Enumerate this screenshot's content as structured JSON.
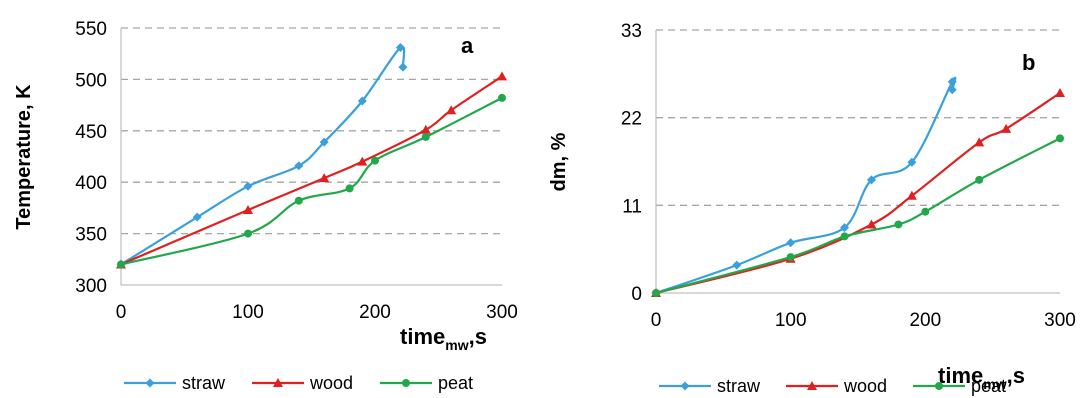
{
  "chart_data": [
    {
      "type": "line",
      "panel_label": "a",
      "xlabel": "time",
      "xlabel_subscript": "mw",
      "xlabel_suffix": ",s",
      "ylabel": "Temperature, K",
      "xlim": [
        0,
        300
      ],
      "ylim": [
        300,
        550
      ],
      "xticks": [
        "0",
        "100",
        "200",
        "300"
      ],
      "yticks": [
        "300",
        "350",
        "400",
        "450",
        "500",
        "550"
      ],
      "grid": "horizontal dashed",
      "legend_position": "bottom",
      "series": [
        {
          "name": "straw",
          "color": "#3aa0dc",
          "marker": "diamond",
          "x": [
            0,
            60,
            100,
            140,
            160,
            190,
            220,
            222
          ],
          "y": [
            320,
            366,
            396,
            416,
            439,
            479,
            531,
            512
          ]
        },
        {
          "name": "wood",
          "color": "#e02020",
          "marker": "triangle",
          "x": [
            0,
            100,
            160,
            190,
            240,
            260,
            300
          ],
          "y": [
            320,
            373,
            404,
            420,
            451,
            470,
            503
          ]
        },
        {
          "name": "peat",
          "color": "#22a84a",
          "marker": "circle",
          "x": [
            0,
            100,
            140,
            180,
            200,
            240,
            300
          ],
          "y": [
            320,
            350,
            382,
            394,
            421,
            444,
            482
          ]
        }
      ]
    },
    {
      "type": "line",
      "panel_label": "b",
      "xlabel": "time",
      "xlabel_subscript": "mw",
      "xlabel_suffix": ",s",
      "ylabel": "dm, %",
      "xlim": [
        0,
        300
      ],
      "ylim": [
        0,
        33
      ],
      "xticks": [
        "0",
        "100",
        "200",
        "300"
      ],
      "yticks": [
        "0",
        "11",
        "22",
        "33"
      ],
      "grid": "horizontal dashed",
      "legend_position": "bottom",
      "series": [
        {
          "name": "straw",
          "color": "#3aa0dc",
          "marker": "diamond",
          "x": [
            0,
            60,
            100,
            140,
            160,
            190,
            220,
            220
          ],
          "y": [
            0,
            3.5,
            6.3,
            8.2,
            14.2,
            16.4,
            26.5,
            25.5
          ]
        },
        {
          "name": "wood",
          "color": "#e02020",
          "marker": "triangle",
          "x": [
            0,
            100,
            160,
            190,
            240,
            260,
            300
          ],
          "y": [
            0,
            4.3,
            8.6,
            12.2,
            18.9,
            20.6,
            25.1
          ]
        },
        {
          "name": "peat",
          "color": "#22a84a",
          "marker": "circle",
          "x": [
            0,
            100,
            140,
            180,
            200,
            240,
            300
          ],
          "y": [
            0,
            4.5,
            7.1,
            8.6,
            10.2,
            14.2,
            19.4
          ]
        }
      ]
    }
  ]
}
